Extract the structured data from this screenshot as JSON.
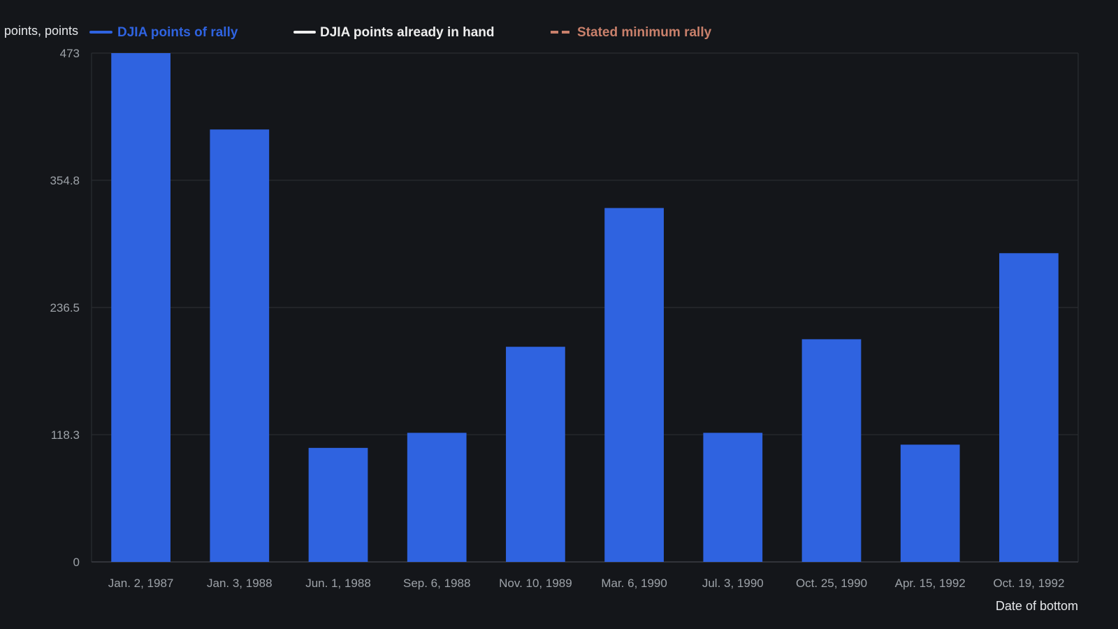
{
  "chart_data": {
    "type": "bar",
    "ylabel": "points, points",
    "xlabel": "Date of bottom",
    "categories": [
      "Jan. 2, 1987",
      "Jan. 3, 1988",
      "Jun. 1, 1988",
      "Sep. 6, 1988",
      "Nov. 10, 1989",
      "Mar. 6, 1990",
      "Jul. 3, 1990",
      "Oct. 25, 1990",
      "Apr. 15, 1992",
      "Oct. 19, 1992"
    ],
    "ylim": [
      0,
      473
    ],
    "yticks": [
      "0",
      "118.3",
      "236.5",
      "354.8",
      "473"
    ],
    "grid": true,
    "legend_position": "top",
    "series": [
      {
        "name": "DJIA points of rally",
        "color": "#2f63e0",
        "values": [
          473,
          402,
          106,
          120,
          200,
          329,
          120,
          207,
          109,
          287
        ]
      }
    ],
    "legend": [
      {
        "label": "DJIA points of rally",
        "color": "#2f63e0",
        "style": "solid"
      },
      {
        "label": "DJIA points already in hand",
        "color": "#eeeeee",
        "style": "solid"
      },
      {
        "label": "Stated minimum rally",
        "color": "#c9806b",
        "style": "dashed"
      }
    ],
    "colors": {
      "background": "#14161a",
      "bar": "#2f63e0",
      "grid": "#2a2d32"
    }
  }
}
